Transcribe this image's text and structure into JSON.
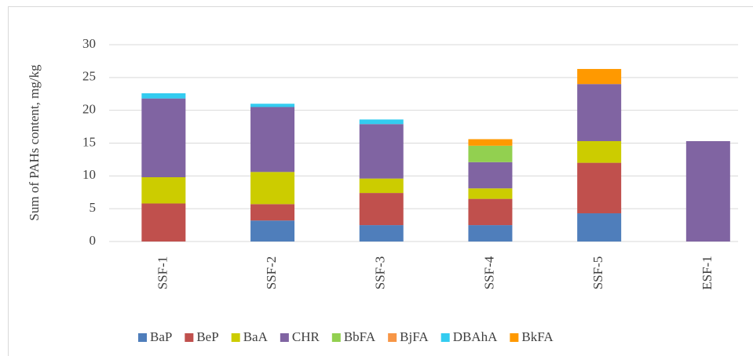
{
  "chart_data": {
    "type": "stacked_bar",
    "y_label": "Sum of PAHs content, mg/kg",
    "categories": [
      "SSF-1",
      "SSF-2",
      "SSF-3",
      "SSF-4",
      "SSF-5",
      "ESF-1"
    ],
    "series": [
      {
        "name": "BaP",
        "color": "#4f7ebb",
        "values": [
          0,
          3.2,
          2.5,
          2.5,
          4.3,
          0
        ]
      },
      {
        "name": "BeP",
        "color": "#c0504d",
        "values": [
          5.8,
          2.5,
          4.9,
          4.0,
          7.7,
          0
        ]
      },
      {
        "name": "BaA",
        "color": "#cccc00",
        "values": [
          4.0,
          4.9,
          2.2,
          1.6,
          3.3,
          0
        ]
      },
      {
        "name": "CHR",
        "color": "#8064a2",
        "values": [
          12.0,
          9.9,
          8.3,
          4.0,
          8.7,
          15.3
        ]
      },
      {
        "name": "BbFA",
        "color": "#92d050",
        "values": [
          0,
          0,
          0,
          2.5,
          0,
          0
        ]
      },
      {
        "name": "BjFA",
        "color": "#f79646",
        "values": [
          0,
          0,
          0,
          0,
          0,
          0
        ]
      },
      {
        "name": "DBAhA",
        "color": "#33ccf0",
        "values": [
          0.8,
          0.5,
          0.7,
          0,
          0,
          0
        ]
      },
      {
        "name": "BkFA",
        "color": "#ff9900",
        "values": [
          0,
          0,
          0,
          1.0,
          2.3,
          0
        ]
      }
    ],
    "ylim": [
      0,
      30
    ],
    "yticks": [
      0,
      5,
      10,
      15,
      20,
      25,
      30
    ],
    "grid": true,
    "legend": "bottom"
  }
}
